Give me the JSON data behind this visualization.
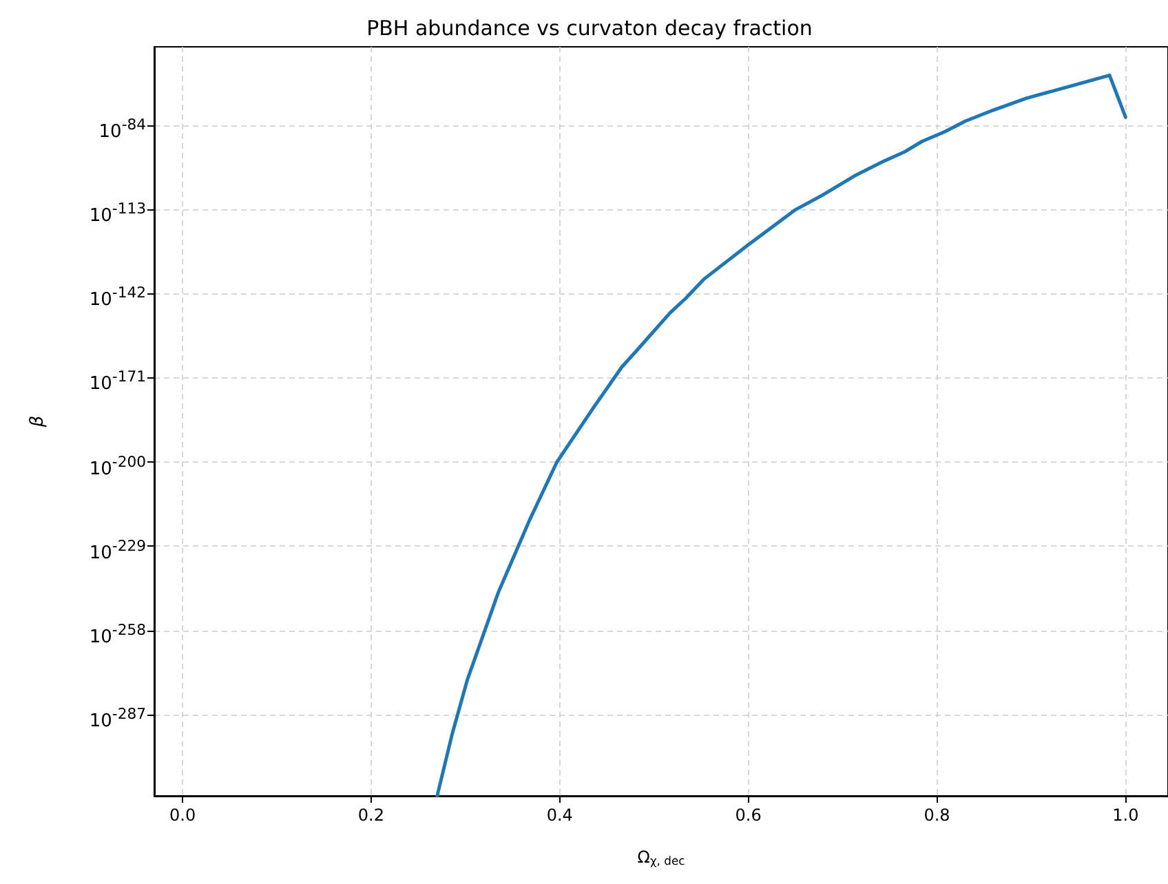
{
  "chart_data": {
    "type": "line",
    "title": "PBH abundance vs curvaton decay fraction",
    "xlabel": "Ω$_{χ, dec}$",
    "ylabel": "β",
    "log": true,
    "grid": true,
    "marker": "none",
    "line_style": "solid",
    "xlim": [
      -0.03,
      1.045
    ],
    "xticks": [
      {
        "value": 0,
        "label": "0.0"
      },
      {
        "value": 0.2,
        "label": "0.2"
      },
      {
        "value": 0.4,
        "label": "0.4"
      },
      {
        "value": 0.6,
        "label": "0.6"
      },
      {
        "value": 0.8,
        "label": "0.8"
      },
      {
        "value": 1,
        "label": "1.0"
      }
    ],
    "ylim": [
      1e-315,
      1e-57
    ],
    "yticks": [
      {
        "value": 1e-287,
        "label": "10$^{-287}$"
      },
      {
        "value": 1e-258,
        "label": "10$^{-258}$"
      },
      {
        "value": 1e-229,
        "label": "10$^{-229}$"
      },
      {
        "value": 1e-200,
        "label": "10$^{-200}$"
      },
      {
        "value": 1e-171,
        "label": "10$^{-171}$"
      },
      {
        "value": 1e-142,
        "label": "10$^{-142}$"
      },
      {
        "value": 1e-113,
        "label": "10$^{-113}$"
      },
      {
        "value": 1e-84,
        "label": "10$^{-84}$"
      }
    ],
    "series": [
      {
        "color": "#1f77b4",
        "x": [
          0.27,
          0.286,
          0.302,
          0.335,
          0.368,
          0.397,
          0.414,
          0.437,
          0.466,
          0.483,
          0.517,
          0.534,
          0.553,
          0.599,
          0.649,
          0.678,
          0.714,
          0.743,
          0.765,
          0.784,
          0.808,
          0.83,
          0.859,
          0.895,
          0.931,
          0.983,
          1.0
        ],
        "values": [
          1e-315,
          2.5e-294,
          1e-275,
          1.6e-245,
          1e-220,
          1e-200,
          1.6e-192,
          2e-181,
          6.3e-168,
          7.9e-162,
          2.5e-149,
          3.2e-144,
          1e-137,
          4e-126,
          5e-114,
          6.3e-109,
          6.3e-102,
          3.2e-97,
          5e-94,
          2.5e-90,
          5e-87,
          2.5e-83,
          1.3e-79,
          2e-75,
          3.2e-72,
          1.6e-67,
          6.3e-82
        ]
      }
    ]
  }
}
